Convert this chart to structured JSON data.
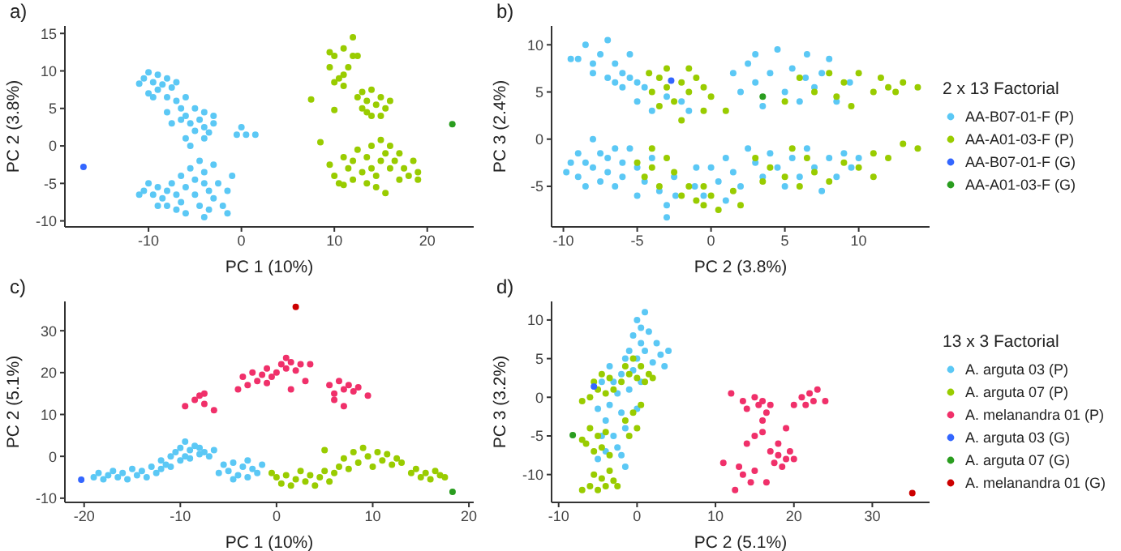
{
  "chart_data": [
    {
      "type": "scatter",
      "title": "a)",
      "xlabel": "PC 1 (10%)",
      "ylabel": "PC 2 (3.8%)",
      "xlim": [
        -19,
        25
      ],
      "ylim": [
        -10.8,
        16
      ],
      "xticks": [
        -10,
        0,
        10,
        20
      ],
      "yticks": [
        -10,
        -5,
        0,
        5,
        10,
        15
      ],
      "marker": "circle",
      "series": [
        {
          "color": "#5bc8f5",
          "x": [
            -11,
            -10.5,
            -10,
            -9.5,
            -9,
            -9,
            -8.5,
            -8,
            -8,
            -7.5,
            -7,
            -7,
            -6.5,
            -6,
            -6,
            -5.5,
            -5,
            -5,
            -4.5,
            -4,
            -4,
            -3.5,
            -3,
            -3,
            -7.5,
            -8,
            -9.5,
            -6,
            -5.5,
            -4,
            -10,
            -6.5,
            -10.5,
            -10,
            -9.5,
            -9,
            -8.5,
            -8,
            -8,
            -7.5,
            -7,
            -6.5,
            -6.5,
            -6,
            -5.5,
            -5,
            -5,
            -4.5,
            -4.5,
            -4,
            -4,
            -3.5,
            -3.5,
            -3,
            -2.5,
            -2,
            -1.5,
            -1,
            -1.5,
            -4,
            -6,
            -7,
            -9,
            -11,
            -3,
            0,
            -0.5,
            0.5,
            1.5
          ],
          "values": [
            8.3,
            9,
            9.8,
            8.5,
            9.5,
            7.5,
            8.2,
            9,
            6.5,
            7.8,
            6,
            8.5,
            5,
            6.5,
            4,
            3,
            5,
            2,
            3.5,
            2.5,
            4.5,
            1.8,
            3,
            4,
            3,
            4.5,
            6.5,
            1,
            0,
            1,
            7,
            3.5,
            -6,
            -5,
            -6.5,
            -5.5,
            -7,
            -6,
            -8,
            -5,
            -6.5,
            -4,
            -7.5,
            -5.5,
            -3,
            -4.5,
            -6.5,
            -2,
            -8,
            -5,
            -3.5,
            -6,
            -8.5,
            -7,
            -5,
            -8,
            -6,
            -4,
            -9,
            -9.5,
            -9,
            -8.5,
            -8,
            -6.5,
            -2.5,
            2.5,
            1.5,
            1.5,
            1.5
          ]
        },
        {
          "color": "#99cc00",
          "x": [
            9.5,
            10,
            10.5,
            11,
            11,
            11.5,
            12,
            12,
            10,
            11,
            12.5,
            9.5,
            12.5,
            13,
            13,
            13.5,
            14,
            14,
            14.5,
            15,
            15.5,
            16,
            13.5,
            15,
            9.5,
            10,
            10.5,
            11,
            11.5,
            12,
            12,
            12.5,
            13,
            13.5,
            13.5,
            14,
            14,
            14.5,
            15,
            15,
            15.5,
            15.5,
            16,
            16,
            16.5,
            17,
            17,
            17.5,
            18,
            18.5,
            19,
            19,
            11,
            14.5,
            7.5,
            8.5,
            10
          ],
          "values": [
            10.5,
            12,
            9,
            13,
            8,
            10.5,
            14.5,
            12,
            8.5,
            9.5,
            12,
            12.5,
            6.5,
            7.2,
            5,
            6,
            7.5,
            4,
            5.5,
            6.5,
            5,
            6,
            4.5,
            4,
            -2.5,
            -4,
            -5,
            -1.5,
            -3,
            -4.5,
            -2,
            -0.5,
            -3.5,
            -5,
            -1.5,
            0,
            -3,
            -4,
            0.8,
            -2,
            -1,
            -6.3,
            -3,
            0,
            -2,
            -4.5,
            -1,
            -3,
            -4,
            -2,
            -4.5,
            -3.5,
            -5.2,
            -5.5,
            6.2,
            0.5,
            4.8
          ]
        },
        {
          "color": "#3366ff",
          "x": [
            -17
          ],
          "values": [
            -2.8
          ]
        },
        {
          "color": "#2a9d1f",
          "x": [
            22.7
          ],
          "values": [
            2.9
          ]
        }
      ]
    },
    {
      "type": "scatter",
      "title": "b)",
      "xlabel": "PC 2 (3.8%)",
      "ylabel": "PC 3 (2.4%)",
      "xlim": [
        -10.8,
        14.8
      ],
      "ylim": [
        -9.3,
        12
      ],
      "xticks": [
        -10,
        -5,
        0,
        5,
        10
      ],
      "yticks": [
        -5,
        0,
        5,
        10
      ],
      "marker": "circle",
      "legend": "right",
      "legend_title": "2 x 13 Factorial",
      "series": [
        {
          "name": "AA-B07-01-F (P)",
          "color": "#5bc8f5",
          "x": [
            -9,
            -8.5,
            -8,
            -7.5,
            -7,
            -7,
            -6.5,
            -6,
            -6,
            -5.5,
            -5,
            -5,
            -4.5,
            -6.5,
            -8,
            -5.5,
            -4,
            -3,
            -2,
            -1.5,
            -9.5,
            -9.8,
            -9,
            -9,
            -8.5,
            -8,
            -8,
            -7.5,
            -7.5,
            -7,
            -7,
            -6.5,
            -6.5,
            -6,
            -6,
            -5.5,
            -5,
            -5,
            -4.5,
            -4,
            -3.5,
            -3,
            -2.5,
            -2.4,
            -1.1,
            -1,
            -3,
            -8.5,
            -9.5,
            1.5,
            2,
            2.5,
            3,
            3,
            3.5,
            4,
            4.5,
            5,
            5.5,
            6,
            6.4,
            6.5,
            7,
            7.5,
            8,
            8.5,
            9.4,
            0,
            0.5,
            1,
            1.5,
            2,
            2.5,
            3,
            3.5,
            4,
            4.5,
            5,
            5.5,
            6,
            6.5,
            7,
            7.5,
            8,
            8.5,
            9,
            9.5,
            10,
            -0.5,
            1
          ],
          "values": [
            8.5,
            10,
            7,
            9,
            6.5,
            10.5,
            8,
            5.5,
            7,
            9,
            6,
            4,
            5.5,
            6,
            8,
            6.5,
            3,
            4.5,
            4,
            3,
            8.5,
            -3.5,
            -1.5,
            -4,
            -2.5,
            0,
            -3,
            -1.5,
            -4.5,
            -2,
            -3.5,
            -1,
            -5,
            -2.5,
            -4,
            -1,
            -3,
            -6,
            -4.5,
            -2,
            -5.5,
            -7,
            -4,
            -6,
            -5,
            -3,
            -8.3,
            -5,
            -2.5,
            7,
            5,
            8,
            9,
            6,
            3.5,
            7,
            9.5,
            5,
            7.5,
            4,
            6.5,
            9,
            5.5,
            7,
            8.5,
            4,
            6,
            -3,
            -4.5,
            -2,
            -3.5,
            -5,
            -1,
            -2.5,
            -4,
            -1.5,
            -3,
            -5,
            -2,
            -4,
            -1,
            -3,
            -5.5,
            -2,
            -4,
            -1.5,
            -3,
            -2,
            -6,
            -6.5
          ]
        },
        {
          "name": "AA-A01-03-F (P)",
          "color": "#99cc00",
          "x": [
            -4.2,
            -4,
            -3.5,
            -3,
            -3,
            -2.5,
            -2,
            -1.5,
            -1.5,
            -1,
            -0.5,
            -0.5,
            0,
            -2,
            -3.5,
            1,
            5,
            6,
            7,
            8,
            8.5,
            9,
            10,
            11,
            11.5,
            12,
            12.5,
            13,
            14,
            9.5,
            -5,
            -4.5,
            -4,
            -3.5,
            -3,
            -2.5,
            -2,
            -1.5,
            -1,
            -0.5,
            0,
            0.5,
            -0.5,
            1.5,
            2,
            -4,
            3,
            3.5,
            4,
            5,
            5.5,
            6,
            6.5,
            7,
            8,
            9,
            10,
            11,
            12,
            13,
            14,
            11
          ],
          "values": [
            7,
            5,
            6.5,
            5.5,
            7.5,
            4,
            6,
            5,
            7.5,
            6.5,
            5.5,
            3,
            4.5,
            2,
            3.5,
            3,
            4,
            6.5,
            5,
            7,
            4.5,
            6,
            7,
            5,
            6.5,
            5.5,
            5,
            6,
            5.5,
            3.5,
            -2.5,
            -4,
            -3,
            -5,
            -2,
            -3.5,
            -6,
            -5,
            -6.5,
            -7,
            -6,
            -7.5,
            -5,
            -5.5,
            -7,
            -1,
            -2,
            -4.5,
            -3,
            -4,
            -1,
            -5,
            -2,
            -3.5,
            -4.5,
            -2.5,
            -3,
            -1.5,
            -2,
            -0.5,
            -1,
            -4
          ]
        },
        {
          "name": "AA-B07-01-F (G)",
          "color": "#3366ff",
          "x": [
            -2.7
          ],
          "values": [
            6.2
          ]
        },
        {
          "name": "AA-A01-03-F (G)",
          "color": "#2a9d1f",
          "x": [
            3.5
          ],
          "values": [
            4.5
          ]
        }
      ]
    },
    {
      "type": "scatter",
      "title": "c)",
      "xlabel": "PC 1 (10%)",
      "ylabel": "PC 2 (5.1%)",
      "xlim": [
        -22,
        20.5
      ],
      "ylim": [
        -11,
        37
      ],
      "xticks": [
        -20,
        -10,
        0,
        10,
        20
      ],
      "yticks": [
        -10,
        0,
        10,
        20,
        30
      ],
      "marker": "circle",
      "series": [
        {
          "color": "#5bc8f5",
          "x": [
            -19,
            -18.5,
            -18,
            -17.5,
            -17,
            -16.5,
            -16,
            -15.5,
            -15,
            -14.5,
            -14,
            -13.5,
            -13,
            -12.5,
            -12,
            -12,
            -11.5,
            -11,
            -11,
            -10.5,
            -10,
            -10,
            -9.5,
            -9.5,
            -9,
            -9,
            -8.5,
            -8,
            -8,
            -7.5,
            -7,
            -6.5,
            -5.5,
            -5,
            -4.5,
            -4,
            -3.5,
            -3,
            -2.5,
            -2,
            -1.5,
            -4.5,
            -3,
            -6
          ],
          "values": [
            -5,
            -4,
            -5.5,
            -4.5,
            -3.5,
            -5,
            -4,
            -5.5,
            -3,
            -4.5,
            -3.5,
            -5,
            -2.5,
            -4,
            -1,
            -3,
            -2,
            0,
            -2.5,
            1,
            2,
            -1,
            0,
            3.5,
            1.5,
            -0.5,
            2.5,
            0.5,
            2,
            1,
            0,
            1.5,
            -2,
            -3.5,
            -1.5,
            -4.5,
            -2.5,
            -5,
            -3,
            -4,
            -2,
            -5.5,
            -1,
            -4
          ]
        },
        {
          "color": "#99cc00",
          "x": [
            0,
            0.5,
            1,
            1.5,
            2,
            2.5,
            3,
            3.5,
            4,
            4.5,
            5,
            5,
            5.5,
            6,
            6.5,
            7,
            7.5,
            8,
            8.5,
            9,
            9.5,
            10,
            10.5,
            11,
            11.5,
            12,
            12.5,
            13,
            14,
            14.5,
            15,
            15.5,
            16,
            16.5,
            17,
            17.5,
            -0.5
          ],
          "values": [
            -5,
            -6.5,
            -4.5,
            -7,
            -5.5,
            -3.5,
            -6,
            -4.5,
            -7,
            -5,
            -3.5,
            1.5,
            -6,
            -4,
            -2.5,
            -0.5,
            -3,
            1,
            -1.5,
            2,
            0,
            -2.5,
            1,
            -1,
            0.5,
            -2,
            -0.5,
            -1.5,
            -4,
            -3,
            -5,
            -4,
            -5.5,
            -3.5,
            -4.5,
            -5,
            -4
          ]
        },
        {
          "color": "#f0306a",
          "x": [
            -9.5,
            -8.5,
            -8,
            -7.5,
            -7.5,
            -6.5,
            -3.5,
            -3,
            -2.5,
            -2,
            -1.5,
            -1,
            -1,
            -0.5,
            0,
            0.5,
            1,
            1,
            1.5,
            2,
            2.5,
            3,
            3.5,
            -4,
            1.5,
            5.5,
            6,
            6.5,
            7,
            7,
            7.5,
            8,
            8.5,
            9.5,
            6
          ],
          "values": [
            12,
            13.5,
            14.5,
            15,
            12.5,
            11,
            19,
            17,
            20,
            18,
            19.5,
            21,
            17.5,
            19,
            20,
            22,
            23.5,
            21,
            22.5,
            20.5,
            22,
            18,
            22,
            16,
            16,
            17,
            15,
            18,
            16,
            12,
            17,
            15.5,
            16.5,
            14.5,
            13.5
          ]
        },
        {
          "color": "#3366ff",
          "x": [
            -20.3
          ],
          "values": [
            -5.6
          ]
        },
        {
          "color": "#2a9d1f",
          "x": [
            18.3
          ],
          "values": [
            -8.5
          ]
        },
        {
          "color": "#cc0000",
          "x": [
            2
          ],
          "values": [
            35.7
          ]
        }
      ]
    },
    {
      "type": "scatter",
      "title": "d)",
      "xlabel": "PC 2 (5.1%)",
      "ylabel": "PC 3 (3.2%)",
      "xlim": [
        -10.9,
        37.3
      ],
      "ylim": [
        -13.6,
        12.4
      ],
      "xticks": [
        -10,
        0,
        10,
        20,
        30
      ],
      "yticks": [
        -10,
        -5,
        0,
        5,
        10
      ],
      "marker": "circle",
      "legend": "right",
      "legend_title": "13 x 3 Factorial",
      "series": [
        {
          "name": "A. arguta 03 (P)",
          "color": "#5bc8f5",
          "x": [
            -5,
            -4.5,
            -4,
            -4,
            -3.5,
            -3,
            -3,
            -2.5,
            -2.5,
            -2,
            -2,
            -1.5,
            -1.5,
            -1,
            -1,
            -0.5,
            -0.5,
            0,
            0,
            0,
            0.5,
            0.5,
            1,
            1,
            1.5,
            2,
            2.5,
            3,
            3.5,
            4,
            -3.5,
            -4.5,
            -5,
            -1.5,
            -2,
            0.5
          ],
          "values": [
            -8,
            -5,
            -7,
            -3,
            -1,
            -5,
            2,
            -6.5,
            0.5,
            3,
            -2,
            5,
            -4,
            6,
            1,
            8,
            3.5,
            10,
            5,
            -1.5,
            9,
            7,
            11,
            6,
            8.5,
            4.5,
            7,
            5.5,
            4,
            6,
            4,
            2,
            -1.5,
            -9,
            -7.5,
            2
          ]
        },
        {
          "name": "A. arguta 07 (P)",
          "color": "#99cc00",
          "x": [
            -6,
            -5.5,
            -5,
            -4.5,
            -4,
            -3.5,
            -3,
            -2.5,
            -6.5,
            -6,
            -5.5,
            -5,
            -4.5,
            -4,
            -3.5,
            -7,
            -1.5,
            -1,
            -0.5,
            0,
            0.5,
            -6,
            -5.5,
            -5,
            -4.5,
            -4,
            -3.5,
            -3,
            -7,
            -2,
            -1.5,
            -1,
            -0.5,
            0,
            0.5,
            1,
            1.5,
            2,
            -7
          ],
          "values": [
            -11.5,
            -10,
            -12,
            -10.5,
            -11.5,
            -9.5,
            -10.8,
            -11.5,
            -6,
            -4,
            -7,
            -5,
            -6.5,
            -4.5,
            -7.5,
            -5.5,
            -3,
            -5,
            -2,
            -4,
            -1,
            0,
            2,
            1,
            3,
            0.5,
            2.5,
            1,
            -0.5,
            2,
            4,
            3,
            5,
            2.5,
            4,
            2,
            3,
            2.5,
            -12
          ]
        },
        {
          "name": "A. melanandra 01 (P)",
          "color": "#f0306a",
          "x": [
            12,
            13.5,
            14,
            15,
            15.5,
            16,
            16.5,
            16,
            17,
            21,
            21.5,
            22,
            22.5,
            23,
            20,
            24,
            17,
            17.5,
            18,
            18.5,
            19,
            19.5,
            20,
            18,
            15,
            16,
            14,
            13,
            12.5,
            13.5,
            14.5,
            11,
            15,
            16.5,
            19
          ],
          "values": [
            0.5,
            -0.5,
            -1.5,
            0,
            -1,
            -0.5,
            -2,
            -3,
            -1,
            0,
            -1,
            0.5,
            -0.5,
            1,
            -1,
            -0.5,
            -7,
            -8.5,
            -7.5,
            -9,
            -8,
            -7,
            -8,
            -6,
            -5,
            -4.5,
            -6,
            -9,
            -12,
            -10,
            -11,
            -8.5,
            -9.5,
            -11,
            -4
          ]
        },
        {
          "name": "A. arguta 03 (G)",
          "color": "#3366ff",
          "x": [
            -5.5
          ],
          "values": [
            1.4
          ]
        },
        {
          "name": "A. arguta 07 (G)",
          "color": "#2a9d1f",
          "x": [
            -8.2
          ],
          "values": [
            -4.9
          ]
        },
        {
          "name": "A. melanandra 01 (G)",
          "color": "#cc0000",
          "x": [
            35.1
          ],
          "values": [
            -12.4
          ]
        }
      ]
    }
  ]
}
